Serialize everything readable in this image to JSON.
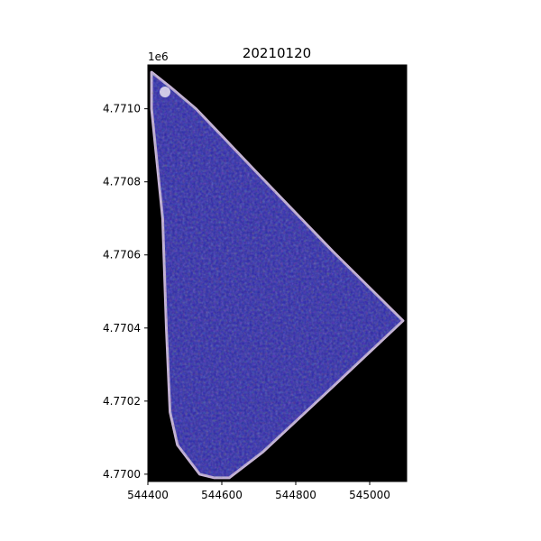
{
  "chart_data": {
    "type": "heatmap",
    "title": "20210120",
    "xlabel": "",
    "ylabel": "",
    "y_offset_label": "1e6",
    "xlim": [
      544400,
      545100
    ],
    "ylim": [
      4769980,
      4771120
    ],
    "xticks": [
      544400,
      544600,
      544800,
      545000
    ],
    "xtick_labels": [
      "544400",
      "544600",
      "544800",
      "545000"
    ],
    "yticks": [
      4770000,
      4770200,
      4770400,
      4770600,
      4770800,
      4771000
    ],
    "ytick_labels": [
      "4.7700",
      "4.7702",
      "4.7704",
      "4.7706",
      "4.7708",
      "4.7710"
    ],
    "grid": false,
    "background_color": "#000000",
    "field_color": "#2a25a8",
    "edge_color": "#c9b6d8",
    "field_polygon": [
      [
        544410,
        4771100
      ],
      [
        544460,
        4771060
      ],
      [
        544530,
        4771000
      ],
      [
        544700,
        4770820
      ],
      [
        544900,
        4770610
      ],
      [
        545090,
        4770420
      ],
      [
        544880,
        4770220
      ],
      [
        544710,
        4770060
      ],
      [
        544620,
        4769990
      ],
      [
        544580,
        4769990
      ],
      [
        544540,
        4770000
      ],
      [
        544480,
        4770080
      ],
      [
        544460,
        4770170
      ],
      [
        544450,
        4770400
      ],
      [
        544440,
        4770700
      ],
      [
        544420,
        4770900
      ],
      [
        544410,
        4771000
      ]
    ]
  }
}
